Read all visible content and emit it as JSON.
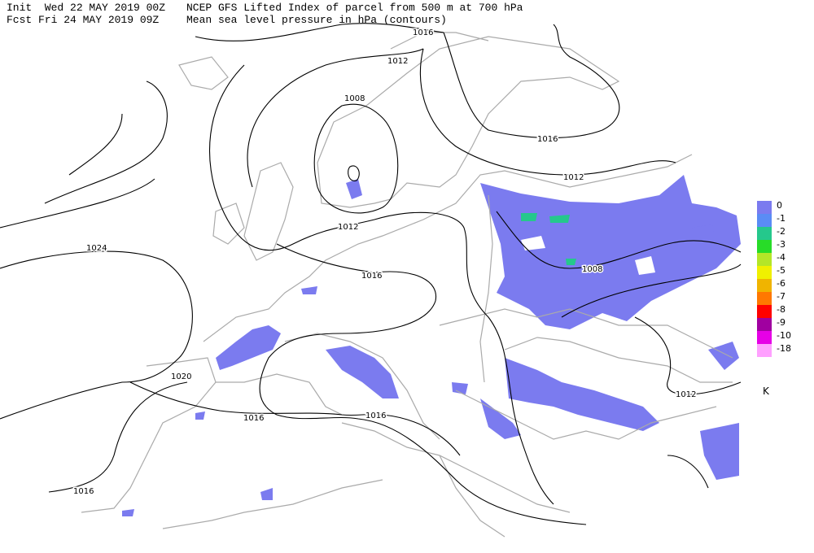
{
  "header": {
    "init": "Init  Wed 22 MAY 2019 00Z",
    "fcst": "Fcst Fri 24 MAY 2019 09Z",
    "title": "NCEP GFS Lifted Index of parcel from 500 m at 700 hPa",
    "subtitle": "Mean sea level pressure in hPa (contours)"
  },
  "contour_labels": [
    "1016",
    "1012",
    "1008",
    "1016",
    "1012",
    "1012",
    "1024",
    "1016",
    "1008",
    "1020",
    "1016",
    "1016",
    "1012",
    "1016"
  ],
  "legend": {
    "items": [
      {
        "label": "0",
        "color": "#7b7bef"
      },
      {
        "label": "-1",
        "color": "#5a8cf5"
      },
      {
        "label": "-2",
        "color": "#25c88c"
      },
      {
        "label": "-3",
        "color": "#28dc28"
      },
      {
        "label": "-4",
        "color": "#b4e628"
      },
      {
        "label": "-5",
        "color": "#f0f000"
      },
      {
        "label": "-6",
        "color": "#f0b400"
      },
      {
        "label": "-7",
        "color": "#ff7800"
      },
      {
        "label": "-8",
        "color": "#ff0000"
      },
      {
        "label": "-9",
        "color": "#a000a0"
      },
      {
        "label": "-10",
        "color": "#e600e6"
      },
      {
        "label": "-18",
        "color": "#ffa0ff"
      }
    ],
    "unit": "K"
  }
}
